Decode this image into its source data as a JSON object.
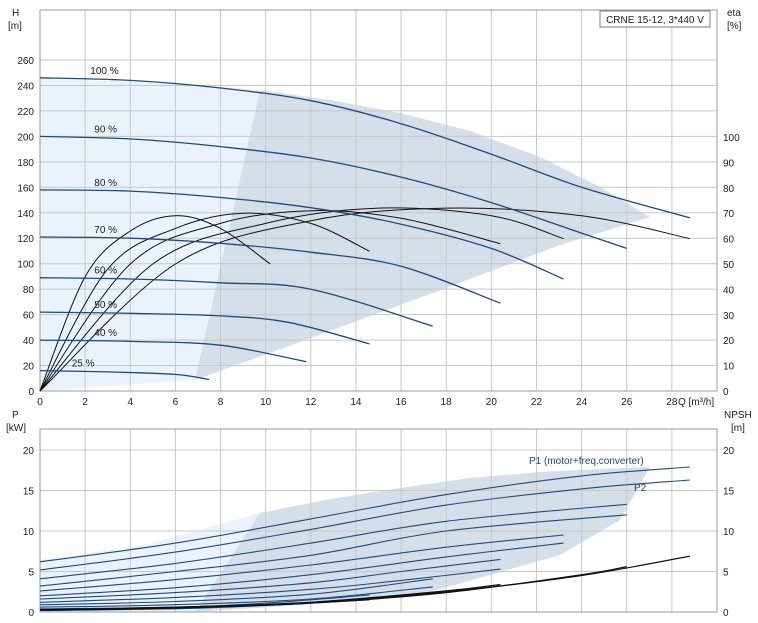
{
  "chart_data": [
    {
      "type": "line",
      "title": "CRNE 15-12, 3*440 V",
      "ylabel": "H",
      "yunit": "[m]",
      "xlabel": "Q [m³/h]",
      "y2label": "eta",
      "y2unit": "[%]",
      "xlim": [
        0,
        30
      ],
      "ylim": [
        0,
        260
      ],
      "y2lim": [
        0,
        100
      ],
      "xticks": [
        0,
        2,
        4,
        6,
        8,
        10,
        12,
        14,
        16,
        18,
        20,
        22,
        24,
        26,
        28
      ],
      "yticks": [
        0,
        20,
        40,
        60,
        80,
        100,
        120,
        140,
        160,
        180,
        200,
        220,
        240,
        260
      ],
      "y2ticks": [
        0,
        10,
        20,
        30,
        40,
        50,
        60,
        70,
        80,
        90,
        100
      ],
      "grid": true,
      "head_curves": [
        {
          "label": "100 %",
          "x": [
            0,
            4,
            8,
            12,
            16,
            20,
            24,
            28.8
          ],
          "y": [
            246,
            244,
            238,
            228,
            210,
            186,
            160,
            136
          ]
        },
        {
          "label": "90 %",
          "x": [
            0,
            4,
            8,
            12,
            16,
            20,
            24,
            26
          ],
          "y": [
            200,
            198,
            192,
            183,
            168,
            148,
            124,
            112
          ]
        },
        {
          "label": "80 %",
          "x": [
            0,
            4,
            8,
            12,
            16,
            20,
            23.2
          ],
          "y": [
            158,
            157,
            152,
            144,
            131,
            112,
            88
          ]
        },
        {
          "label": "70 %",
          "x": [
            0,
            4,
            8,
            12,
            16,
            20.4
          ],
          "y": [
            121,
            120,
            116,
            109,
            98,
            69
          ]
        },
        {
          "label": "60 %",
          "x": [
            0,
            4,
            8,
            12,
            17.4
          ],
          "y": [
            89,
            88,
            85,
            80,
            51
          ]
        },
        {
          "label": "50 %",
          "x": [
            0,
            4,
            8,
            11,
            14.6
          ],
          "y": [
            62,
            61,
            59,
            54,
            37
          ]
        },
        {
          "label": "40 %",
          "x": [
            0,
            4,
            8,
            11.8
          ],
          "y": [
            40,
            39,
            36,
            23
          ]
        },
        {
          "label": "25 %",
          "x": [
            0,
            3,
            6,
            7.5
          ],
          "y": [
            16,
            15,
            13,
            9
          ]
        }
      ],
      "efficiency_curves": [
        {
          "x": [
            0,
            2,
            4,
            6,
            8,
            10.2
          ],
          "y": [
            0,
            45,
            63,
            69,
            64,
            50
          ]
        },
        {
          "x": [
            0,
            3,
            6,
            9,
            12,
            14.6
          ],
          "y": [
            0,
            48,
            64,
            70,
            66,
            55
          ]
        },
        {
          "x": [
            0,
            4,
            8,
            12,
            16,
            20.4
          ],
          "y": [
            0,
            50,
            66,
            71,
            68,
            58
          ]
        },
        {
          "x": [
            0,
            5,
            10,
            15,
            20,
            23.2
          ],
          "y": [
            0,
            50,
            66,
            72,
            69,
            60
          ]
        },
        {
          "x": [
            0,
            6,
            12,
            18,
            24,
            28.8
          ],
          "y": [
            0,
            50,
            67,
            72,
            69,
            60
          ]
        }
      ]
    },
    {
      "type": "line",
      "ylabel": "P",
      "yunit": "[kW]",
      "y2label": "NPSH",
      "y2unit": "[m]",
      "xlim": [
        0,
        30
      ],
      "ylim": [
        0,
        23
      ],
      "yticks": [
        0,
        5,
        10,
        15,
        20
      ],
      "y2ticks": [
        0,
        5,
        10,
        15,
        20
      ],
      "grid": true,
      "annotations": [
        "P1 (motor+freq.converter)",
        "P2"
      ],
      "power_curves": [
        {
          "label": "P1 (motor+freq.converter)",
          "x": [
            0,
            6,
            12,
            18,
            24,
            28.8
          ],
          "y": [
            6.2,
            8.5,
            11.5,
            14.5,
            16.8,
            17.9
          ]
        },
        {
          "label": "P2",
          "x": [
            0,
            6,
            12,
            18,
            24,
            28.8
          ],
          "y": [
            5.2,
            7.4,
            10.2,
            13.2,
            15.2,
            16.3
          ]
        },
        {
          "x": [
            0,
            6,
            12,
            18,
            26
          ],
          "y": [
            4.1,
            6.0,
            8.5,
            11.2,
            13.3
          ]
        },
        {
          "x": [
            0,
            6,
            12,
            18,
            26
          ],
          "y": [
            3.2,
            5.0,
            7.0,
            10.0,
            12.0
          ]
        },
        {
          "x": [
            0,
            6,
            12,
            18,
            23.2
          ],
          "y": [
            2.6,
            4.0,
            5.8,
            8.0,
            9.5
          ]
        },
        {
          "x": [
            0,
            6,
            12,
            18,
            23.2
          ],
          "y": [
            2.0,
            3.0,
            4.6,
            6.8,
            8.5
          ]
        },
        {
          "x": [
            0,
            6,
            12,
            16,
            20.4
          ],
          "y": [
            1.6,
            2.4,
            3.6,
            5.0,
            6.5
          ]
        },
        {
          "x": [
            0,
            6,
            12,
            16,
            20.4
          ],
          "y": [
            1.2,
            1.8,
            2.8,
            3.9,
            5.3
          ]
        },
        {
          "x": [
            0,
            6,
            12,
            17.4
          ],
          "y": [
            0.9,
            1.3,
            2.2,
            4.1
          ]
        },
        {
          "x": [
            0,
            6,
            12,
            17.4
          ],
          "y": [
            0.6,
            0.9,
            1.6,
            3.1
          ]
        },
        {
          "x": [
            0,
            6,
            10,
            14.6
          ],
          "y": [
            0.4,
            0.6,
            1.1,
            2.1
          ]
        },
        {
          "x": [
            0,
            6,
            10,
            14.6
          ],
          "y": [
            0.2,
            0.4,
            0.8,
            1.5
          ]
        }
      ],
      "npsh_curves": [
        {
          "x": [
            0,
            6,
            12,
            18,
            24,
            28.8
          ],
          "y": [
            0.3,
            0.6,
            1.2,
            2.5,
            4.5,
            6.9
          ]
        },
        {
          "x": [
            0,
            6,
            12,
            18,
            24,
            26
          ],
          "y": [
            0.2,
            0.5,
            1.1,
            2.4,
            4.6,
            5.6
          ]
        },
        {
          "x": [
            0,
            6,
            12,
            18,
            20.4
          ],
          "y": [
            0.2,
            0.5,
            1.2,
            2.6,
            3.4
          ]
        }
      ]
    }
  ]
}
